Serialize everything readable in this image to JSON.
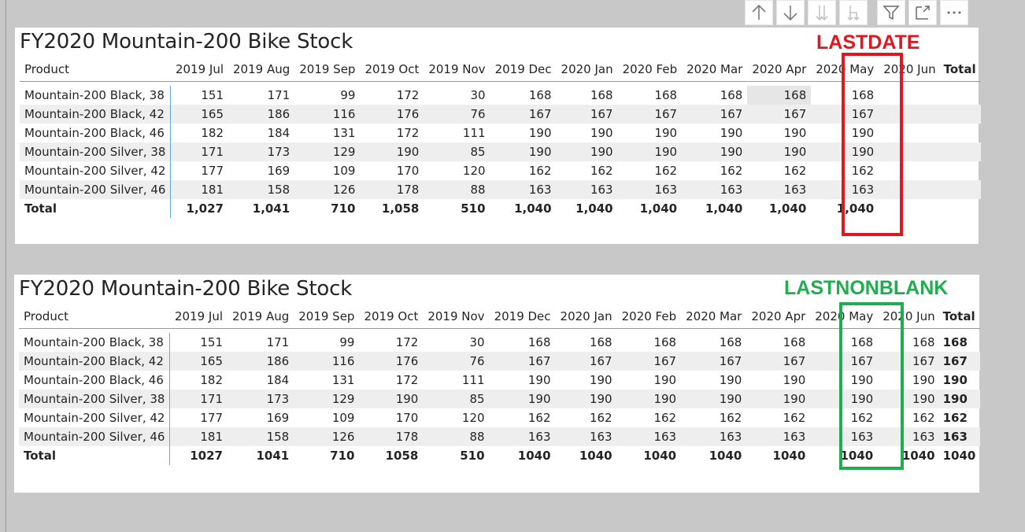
{
  "toolbar": {
    "icons": [
      "arrow-up-icon",
      "arrow-down-icon",
      "expand-all-down-icon",
      "expand-level-icon",
      "filter-icon",
      "focus-mode-icon",
      "more-options-icon"
    ],
    "more_label": "···"
  },
  "visual1": {
    "title": "FY2020 Mountain-200 Bike Stock",
    "annotation": "LASTDATE",
    "columns": [
      "Product",
      "2019 Jul",
      "2019 Aug",
      "2019 Sep",
      "2019 Oct",
      "2019 Nov",
      "2019 Dec",
      "2020 Jan",
      "2020 Feb",
      "2020 Mar",
      "2020 Apr",
      "2020 May",
      "2020 Jun",
      "Total"
    ],
    "rows": [
      [
        "Mountain-200 Black, 38",
        "151",
        "171",
        "99",
        "172",
        "30",
        "168",
        "168",
        "168",
        "168",
        "168",
        "168",
        "",
        ""
      ],
      [
        "Mountain-200 Black, 42",
        "165",
        "186",
        "116",
        "176",
        "76",
        "167",
        "167",
        "167",
        "167",
        "167",
        "167",
        "",
        ""
      ],
      [
        "Mountain-200 Black, 46",
        "182",
        "184",
        "131",
        "172",
        "111",
        "190",
        "190",
        "190",
        "190",
        "190",
        "190",
        "",
        ""
      ],
      [
        "Mountain-200 Silver, 38",
        "171",
        "173",
        "129",
        "190",
        "85",
        "190",
        "190",
        "190",
        "190",
        "190",
        "190",
        "",
        ""
      ],
      [
        "Mountain-200 Silver, 42",
        "177",
        "169",
        "109",
        "170",
        "120",
        "162",
        "162",
        "162",
        "162",
        "162",
        "162",
        "",
        ""
      ],
      [
        "Mountain-200 Silver, 46",
        "181",
        "158",
        "126",
        "178",
        "88",
        "163",
        "163",
        "163",
        "163",
        "163",
        "163",
        "",
        ""
      ]
    ],
    "total_row": [
      "Total",
      "1,027",
      "1,041",
      "710",
      "1,058",
      "510",
      "1,040",
      "1,040",
      "1,040",
      "1,040",
      "1,040",
      "1,040",
      "",
      ""
    ],
    "highlight_color": "#e3161f"
  },
  "visual2": {
    "title": "FY2020 Mountain-200 Bike Stock",
    "annotation": "LASTNONBLANK",
    "columns": [
      "Product",
      "2019 Jul",
      "2019 Aug",
      "2019 Sep",
      "2019 Oct",
      "2019 Nov",
      "2019 Dec",
      "2020 Jan",
      "2020 Feb",
      "2020 Mar",
      "2020 Apr",
      "2020 May",
      "2020 Jun",
      "Total"
    ],
    "rows": [
      [
        "Mountain-200 Black, 38",
        "151",
        "171",
        "99",
        "172",
        "30",
        "168",
        "168",
        "168",
        "168",
        "168",
        "168",
        "168",
        "168"
      ],
      [
        "Mountain-200 Black, 42",
        "165",
        "186",
        "116",
        "176",
        "76",
        "167",
        "167",
        "167",
        "167",
        "167",
        "167",
        "167",
        "167"
      ],
      [
        "Mountain-200 Black, 46",
        "182",
        "184",
        "131",
        "172",
        "111",
        "190",
        "190",
        "190",
        "190",
        "190",
        "190",
        "190",
        "190"
      ],
      [
        "Mountain-200 Silver, 38",
        "171",
        "173",
        "129",
        "190",
        "85",
        "190",
        "190",
        "190",
        "190",
        "190",
        "190",
        "190",
        "190"
      ],
      [
        "Mountain-200 Silver, 42",
        "177",
        "169",
        "109",
        "170",
        "120",
        "162",
        "162",
        "162",
        "162",
        "162",
        "162",
        "162",
        "162"
      ],
      [
        "Mountain-200 Silver, 46",
        "181",
        "158",
        "126",
        "178",
        "88",
        "163",
        "163",
        "163",
        "163",
        "163",
        "163",
        "163",
        "163"
      ]
    ],
    "total_row": [
      "Total",
      "1027",
      "1041",
      "710",
      "1058",
      "510",
      "1040",
      "1040",
      "1040",
      "1040",
      "1040",
      "1040",
      "1040",
      "1040"
    ],
    "highlight_color": "#1fad4f"
  }
}
